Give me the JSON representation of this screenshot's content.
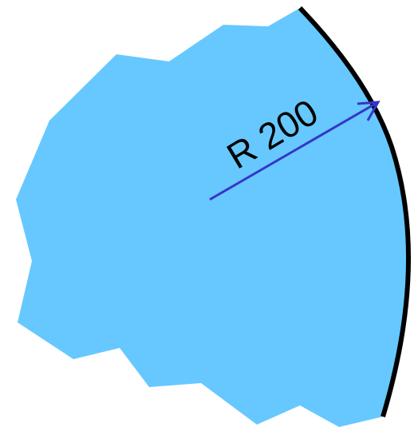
{
  "diagram": {
    "radius_label": "R 200",
    "colors": {
      "fill": "#66C8FF",
      "arc": "#000000",
      "arrow": "#3535C8",
      "label": "#000000"
    }
  }
}
